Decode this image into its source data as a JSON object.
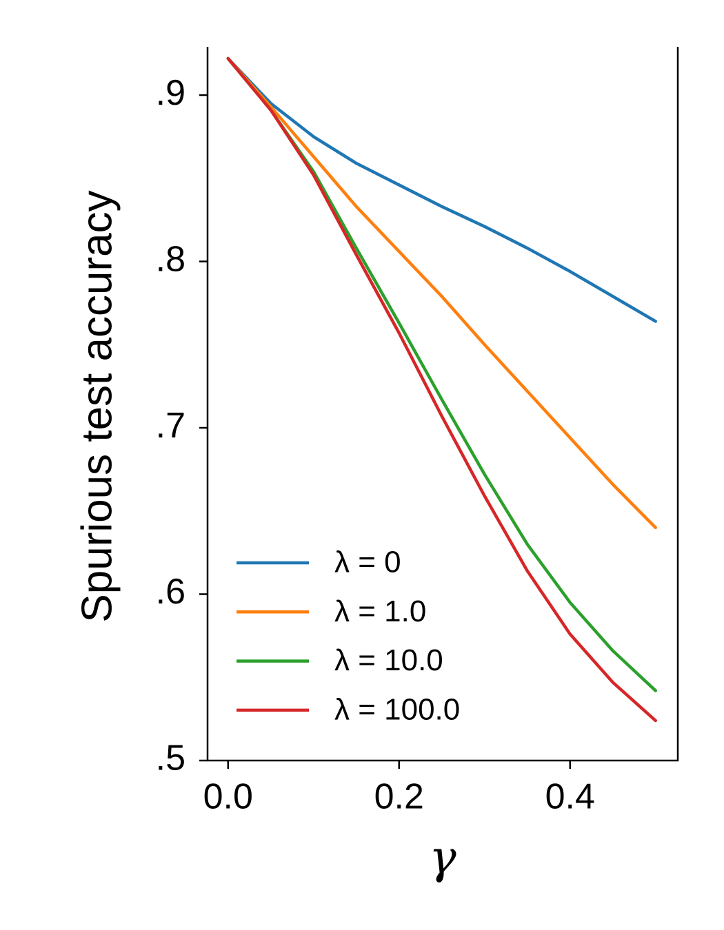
{
  "chart_data": {
    "type": "line",
    "ylabel": "Spurious test accuracy",
    "xlabel": "γ",
    "x": [
      0,
      0.05,
      0.1,
      0.15,
      0.2,
      0.25,
      0.3,
      0.35,
      0.4,
      0.45,
      0.5
    ],
    "series": [
      {
        "name": "λ = 0",
        "color": "#1f77b4",
        "values": [
          0.922,
          0.895,
          0.875,
          0.859,
          0.846,
          0.833,
          0.821,
          0.808,
          0.794,
          0.779,
          0.764
        ]
      },
      {
        "name": "λ = 1.0",
        "color": "#ff7f0e",
        "values": [
          0.922,
          0.893,
          0.863,
          0.833,
          0.806,
          0.779,
          0.75,
          0.722,
          0.694,
          0.666,
          0.64
        ]
      },
      {
        "name": "λ = 10.0",
        "color": "#2ca02c",
        "values": [
          0.922,
          0.891,
          0.854,
          0.808,
          0.763,
          0.717,
          0.672,
          0.63,
          0.595,
          0.566,
          0.542
        ]
      },
      {
        "name": "λ = 100.0",
        "color": "#d62728",
        "values": [
          0.922,
          0.891,
          0.852,
          0.804,
          0.757,
          0.707,
          0.659,
          0.614,
          0.576,
          0.547,
          0.524
        ]
      }
    ],
    "xlim": [
      -0.024,
      0.526
    ],
    "ylim": [
      0.5,
      0.929
    ],
    "xticks": [
      {
        "value": 0,
        "label": "0.0"
      },
      0.2,
      0.4
    ],
    "yticks": [
      {
        "value": 0.5,
        "label": ".5"
      },
      {
        "value": 0.6,
        "label": ".6"
      },
      {
        "value": 0.7,
        "label": ".7"
      },
      {
        "value": 0.8,
        "label": ".8"
      },
      {
        "value": 0.9,
        "label": ".9"
      }
    ],
    "grid": false,
    "legend": "lower left"
  }
}
